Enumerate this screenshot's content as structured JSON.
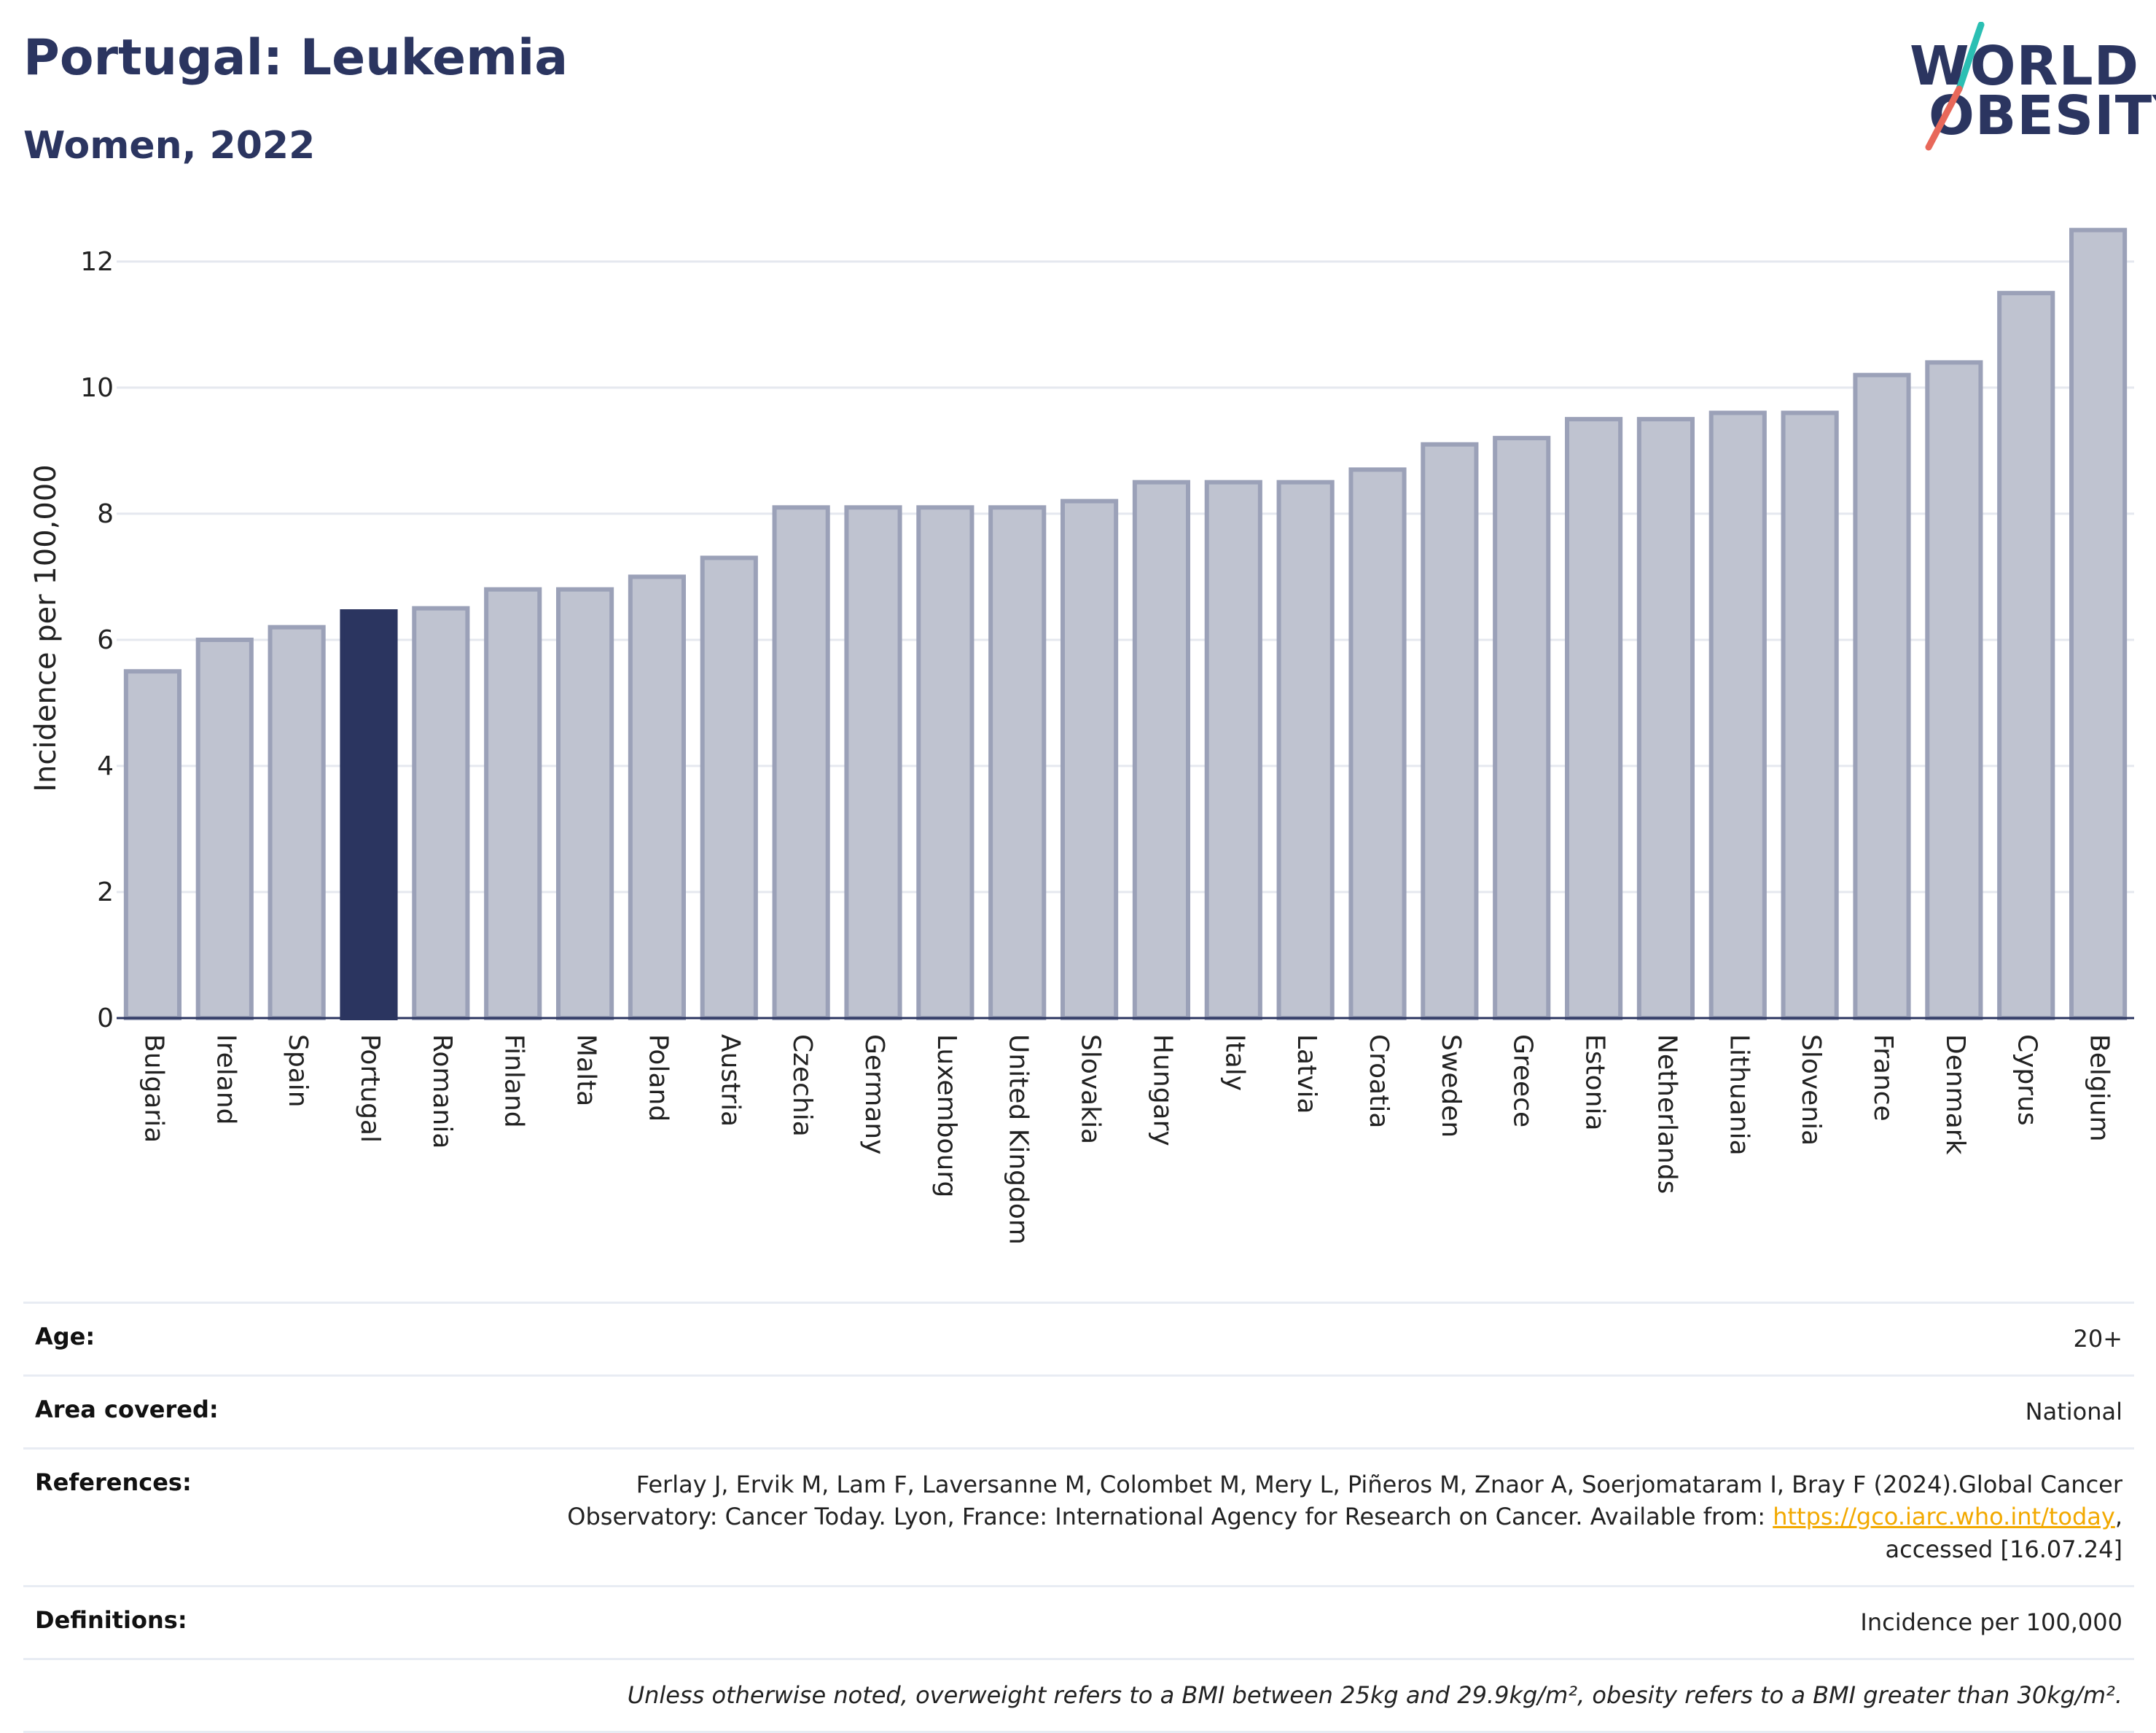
{
  "header": {
    "title": "Portugal: Leukemia",
    "subtitle": "Women, 2022"
  },
  "logo": {
    "line1": "WORLD",
    "line2": "OBESITY",
    "colors": {
      "text": "#2b3560",
      "slash_top": "#2bbfb3",
      "slash_bottom": "#e8685a"
    }
  },
  "chart_data": {
    "type": "bar",
    "title": "Portugal: Leukemia",
    "subtitle": "Women, 2022",
    "xlabel": "",
    "ylabel": "Incidence per 100,000",
    "ylim": [
      0,
      12.6
    ],
    "yticks": [
      0,
      2,
      4,
      6,
      8,
      10,
      12
    ],
    "grid": true,
    "highlight": "Portugal",
    "colors": {
      "bar": "#bfc3d0",
      "bar_border": "#9ba1b8",
      "highlight": "#2b3560",
      "grid": "#e5e8ef",
      "axis": "#2b3560"
    },
    "categories": [
      "Bulgaria",
      "Ireland",
      "Spain",
      "Portugal",
      "Romania",
      "Finland",
      "Malta",
      "Poland",
      "Austria",
      "Czechia",
      "Germany",
      "Luxembourg",
      "United Kingdom",
      "Slovakia",
      "Hungary",
      "Italy",
      "Latvia",
      "Croatia",
      "Sweden",
      "Greece",
      "Estonia",
      "Netherlands",
      "Lithuania",
      "Slovenia",
      "France",
      "Denmark",
      "Cyprus",
      "Belgium"
    ],
    "values": [
      5.5,
      6.0,
      6.2,
      6.45,
      6.5,
      6.8,
      6.8,
      7.0,
      7.3,
      8.1,
      8.1,
      8.1,
      8.1,
      8.2,
      8.5,
      8.5,
      8.5,
      8.7,
      9.1,
      9.2,
      9.5,
      9.5,
      9.6,
      9.6,
      10.2,
      10.4,
      11.5,
      12.5
    ]
  },
  "meta": {
    "age_label": "Age:",
    "age_value": "20+",
    "area_label": "Area covered:",
    "area_value": "National",
    "references_label": "References:",
    "references_text_1": "Ferlay J, Ervik M, Lam F, Laversanne M, Colombet M, Mery L, Piñeros M, Znaor A, Soerjomataram I, Bray F (2024).Global Cancer",
    "references_text_2": "Observatory: Cancer Today. Lyon, France: International Agency for Research on Cancer. Available from: ",
    "references_link": "https://gco.iarc.who.int/today",
    "references_text_3": ",",
    "references_text_4": "accessed [16.07.24]",
    "definitions_label": "Definitions:",
    "definitions_value": "Incidence per 100,000",
    "note": "Unless otherwise noted, overweight refers to a BMI between 25kg and 29.9kg/m², obesity refers to a BMI greater than 30kg/m²."
  }
}
